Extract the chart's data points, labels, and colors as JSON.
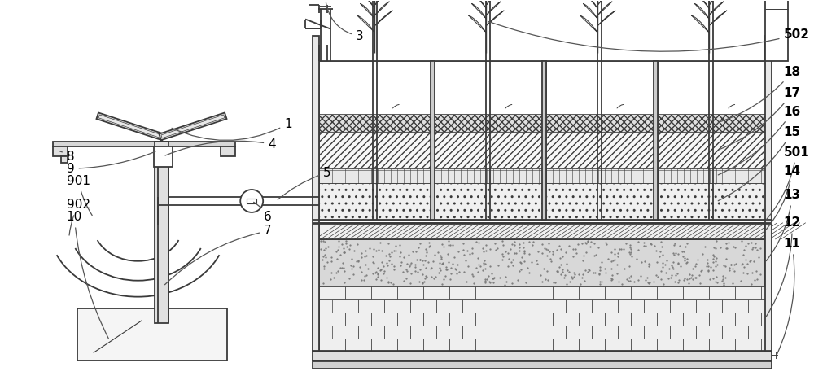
{
  "bg_color": "#ffffff",
  "lc": "#3a3a3a",
  "lw": 1.3,
  "tlw": 2.0,
  "fs": 11,
  "label_color": "#000000"
}
